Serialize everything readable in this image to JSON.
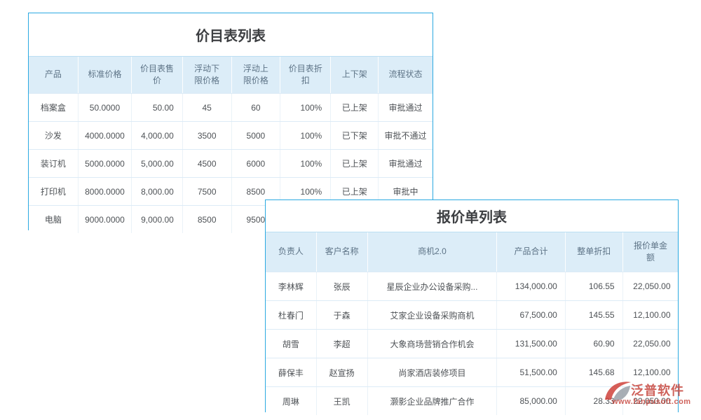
{
  "price_list_table": {
    "title": "价目表列表",
    "columns": [
      "产品",
      "标准价格",
      "价目表售价",
      "浮动下限价格",
      "浮动上限价格",
      "价目表折扣",
      "上下架",
      "流程状态"
    ],
    "rows": [
      {
        "product": "档案盒",
        "standard_price": "50.0000",
        "list_price": "50.00",
        "float_lower_price": "45",
        "float_upper_price": "60",
        "discount": "100%",
        "shelf_status": "已上架",
        "flow_status": "审批通过",
        "flow_status_color": "green"
      },
      {
        "product": "沙发",
        "standard_price": "4000.0000",
        "list_price": "4,000.00",
        "float_lower_price": "3500",
        "float_upper_price": "5000",
        "discount": "100%",
        "shelf_status": "已下架",
        "flow_status": "审批不通过",
        "flow_status_color": "red"
      },
      {
        "product": "装订机",
        "standard_price": "5000.0000",
        "list_price": "5,000.00",
        "float_lower_price": "4500",
        "float_upper_price": "6000",
        "discount": "100%",
        "shelf_status": "已上架",
        "flow_status": "审批通过",
        "flow_status_color": "green"
      },
      {
        "product": "打印机",
        "standard_price": "8000.0000",
        "list_price": "8,000.00",
        "float_lower_price": "7500",
        "float_upper_price": "8500",
        "discount": "100%",
        "shelf_status": "已上架",
        "flow_status": "审批中",
        "flow_status_color": "orange"
      },
      {
        "product": "电脑",
        "standard_price": "9000.0000",
        "list_price": "9,000.00",
        "float_lower_price": "8500",
        "float_upper_price": "9500",
        "discount": "",
        "shelf_status": "",
        "flow_status": "",
        "flow_status_color": ""
      }
    ]
  },
  "quotation_table": {
    "title": "报价单列表",
    "columns": [
      "负责人",
      "客户名称",
      "商机2.0",
      "产品合计",
      "整单折扣",
      "报价单金额"
    ],
    "rows": [
      {
        "owner": "李林辉",
        "customer": "张辰",
        "opportunity": "星辰企业办公设备采购...",
        "product_total": "134,000.00",
        "order_discount": "106.55",
        "quote_amount": "22,050.00"
      },
      {
        "owner": "杜春门",
        "customer": "于森",
        "opportunity": "艾家企业设备采购商机",
        "product_total": "67,500.00",
        "order_discount": "145.55",
        "quote_amount": "12,100.00"
      },
      {
        "owner": "胡雪",
        "customer": "李超",
        "opportunity": "大象商场营销合作机会",
        "product_total": "131,500.00",
        "order_discount": "60.90",
        "quote_amount": "22,050.00"
      },
      {
        "owner": "薛保丰",
        "customer": "赵宣扬",
        "opportunity": "尚家酒店装修项目",
        "product_total": "51,500.00",
        "order_discount": "145.68",
        "quote_amount": "12,100.00"
      },
      {
        "owner": "周琳",
        "customer": "王凯",
        "opportunity": "灏影企业品牌推广合作",
        "product_total": "85,000.00",
        "order_discount": "28.33",
        "quote_amount": "22,050.00"
      }
    ]
  },
  "watermark": {
    "brand": "泛普软件",
    "url": "www.fanpusoft.com"
  },
  "colors": {
    "panel_border": "#2BA9E1",
    "header_bg": "#DCEDF8",
    "header_text": "#5D7386",
    "link_blue": "#4F9FE8",
    "text_dark": "#4E5256",
    "status_green": "#3BAE4C",
    "status_red": "#F5483B",
    "status_orange": "#F5A623",
    "watermark_red": "#C7473F",
    "watermark_gray": "#99A0A9"
  }
}
